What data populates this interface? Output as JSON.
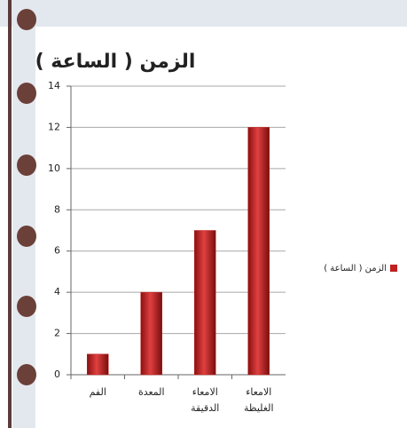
{
  "chart_data": {
    "type": "bar",
    "title": "الزمن ( الساعة )",
    "categories": [
      "الفم",
      "المعدة",
      "الامعاء الدقيقة",
      "الامعاء الغليظة"
    ],
    "series": [
      {
        "name": "الزمن ( الساعة )",
        "color": "#c0201f",
        "values": [
          1,
          4,
          7,
          12
        ]
      }
    ],
    "ylim": [
      0,
      14
    ],
    "yticks": [
      0,
      2,
      4,
      6,
      8,
      10,
      12,
      14
    ],
    "grid": true,
    "legend": "right"
  }
}
